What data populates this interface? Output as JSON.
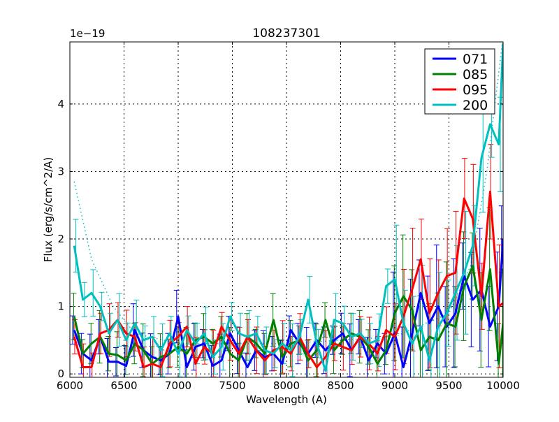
{
  "chart_data": {
    "type": "line",
    "title": "108237301",
    "xlabel": "Wavelength (A)",
    "ylabel": "Flux (erg/s/cm^2/A)",
    "offset_label": "1e−19",
    "xlim": [
      6000,
      10000
    ],
    "ylim": [
      -0.05,
      4.92
    ],
    "xticks": [
      6000,
      6500,
      7000,
      7500,
      8000,
      8500,
      9000,
      9500,
      10000
    ],
    "yticks": [
      0,
      1,
      2,
      3,
      4
    ],
    "grid": true,
    "legend_position": "top-right",
    "x": [
      6040,
      6120,
      6200,
      6280,
      6360,
      6440,
      6520,
      6600,
      6680,
      6760,
      6840,
      6920,
      7000,
      7080,
      7160,
      7240,
      7320,
      7400,
      7480,
      7560,
      7640,
      7720,
      7800,
      7880,
      7960,
      8040,
      8120,
      8200,
      8280,
      8360,
      8440,
      8520,
      8600,
      8680,
      8760,
      8840,
      8920,
      9000,
      9080,
      9160,
      9240,
      9320,
      9400,
      9480,
      9560,
      9640,
      9720,
      9800,
      9880,
      9960,
      10000
    ],
    "yerr": {
      "below_9000": 0.3,
      "above_9000": 0.7
    },
    "series": [
      {
        "name": "071",
        "color": "#0000ff",
        "values": [
          0.65,
          0.3,
          0.2,
          0.55,
          0.18,
          0.18,
          0.12,
          0.65,
          0.35,
          0.25,
          0.2,
          0.3,
          0.85,
          0.1,
          0.4,
          0.45,
          0.12,
          0.2,
          0.6,
          0.35,
          0.1,
          0.35,
          0.25,
          0.3,
          0.15,
          0.65,
          0.45,
          0.3,
          0.5,
          0.35,
          0.5,
          0.6,
          0.35,
          0.55,
          0.2,
          0.45,
          0.3,
          0.6,
          0.1,
          0.6,
          1.2,
          0.75,
          1.0,
          0.7,
          0.9,
          1.45,
          1.1,
          1.25,
          0.7,
          1.0,
          2.0
        ]
      },
      {
        "name": "085",
        "color": "#008000",
        "values": [
          0.85,
          0.3,
          0.45,
          0.55,
          0.3,
          0.28,
          0.2,
          0.45,
          0.35,
          0.15,
          0.25,
          0.3,
          0.4,
          0.3,
          0.5,
          0.55,
          0.45,
          0.55,
          0.3,
          0.2,
          0.55,
          0.45,
          0.3,
          0.8,
          0.25,
          0.45,
          0.5,
          0.2,
          0.35,
          0.8,
          0.35,
          0.5,
          0.6,
          0.55,
          0.4,
          0.15,
          0.35,
          0.9,
          1.15,
          0.95,
          0.35,
          0.55,
          0.5,
          0.75,
          0.7,
          1.3,
          1.6,
          0.8,
          1.55,
          0.15,
          0.75
        ]
      },
      {
        "name": "095",
        "color": "#ff0000",
        "values": [
          0.55,
          0.1,
          0.1,
          0.6,
          0.65,
          0.8,
          0.6,
          0.55,
          0.1,
          0.15,
          0.1,
          0.45,
          0.55,
          0.7,
          0.15,
          0.4,
          0.3,
          0.7,
          0.5,
          0.3,
          0.55,
          0.35,
          0.2,
          0.35,
          0.4,
          0.3,
          0.55,
          0.3,
          0.1,
          0.25,
          0.45,
          0.4,
          0.35,
          0.55,
          0.45,
          0.3,
          0.65,
          0.55,
          0.85,
          1.25,
          1.7,
          0.9,
          1.2,
          1.45,
          1.5,
          2.6,
          2.3,
          1.15,
          2.7,
          1.0,
          1.05
        ]
      },
      {
        "name": "200",
        "color": "#00bfbf",
        "values": [
          1.9,
          1.1,
          1.2,
          1.0,
          0.6,
          0.8,
          0.5,
          0.75,
          0.5,
          0.55,
          0.35,
          0.6,
          0.3,
          0.65,
          0.45,
          0.6,
          0.25,
          0.4,
          0.85,
          0.6,
          0.55,
          0.6,
          0.35,
          0.3,
          0.45,
          0.35,
          0.55,
          1.1,
          0.45,
          0.05,
          0.8,
          0.75,
          0.55,
          0.6,
          0.45,
          0.5,
          1.3,
          1.4,
          0.75,
          0.45,
          0.7,
          0.2,
          0.7,
          0.9,
          1.2,
          1.5,
          1.9,
          3.2,
          3.7,
          3.4,
          4.9
        ]
      }
    ],
    "trend": {
      "color": "#00bfbf",
      "x": [
        6040,
        6200,
        6400,
        6600,
        7000,
        8000,
        9000,
        9500,
        9700,
        9850,
        10000
      ],
      "values": [
        2.85,
        1.7,
        1.0,
        0.6,
        0.45,
        0.45,
        0.55,
        0.9,
        1.6,
        3.0,
        5.0
      ]
    }
  }
}
